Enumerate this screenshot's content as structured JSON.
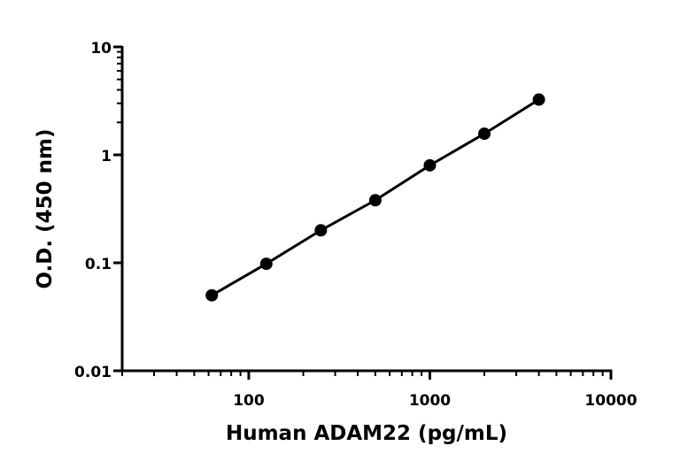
{
  "chart_data": {
    "type": "line",
    "title": "",
    "xlabel": "Human ADAM22 (pg/mL)",
    "ylabel": "O.D. (450 nm)",
    "xscale": "log",
    "yscale": "log",
    "xlim": [
      20,
      10000
    ],
    "ylim": [
      0.01,
      10
    ],
    "xticks": [
      {
        "value": 100,
        "label": "100"
      },
      {
        "value": 1000,
        "label": "1000"
      },
      {
        "value": 10000,
        "label": "10000"
      }
    ],
    "yticks": [
      {
        "value": 0.01,
        "label": "0.01"
      },
      {
        "value": 0.1,
        "label": "0.1"
      },
      {
        "value": 1,
        "label": "1"
      },
      {
        "value": 10,
        "label": "10"
      }
    ],
    "grid": false,
    "series": [
      {
        "x": [
          62.5,
          125,
          250,
          500,
          1000,
          2000,
          4000
        ],
        "y": [
          0.05,
          0.098,
          0.2,
          0.38,
          0.8,
          1.57,
          3.25
        ],
        "color": "#000000",
        "marker": "circle"
      }
    ]
  }
}
